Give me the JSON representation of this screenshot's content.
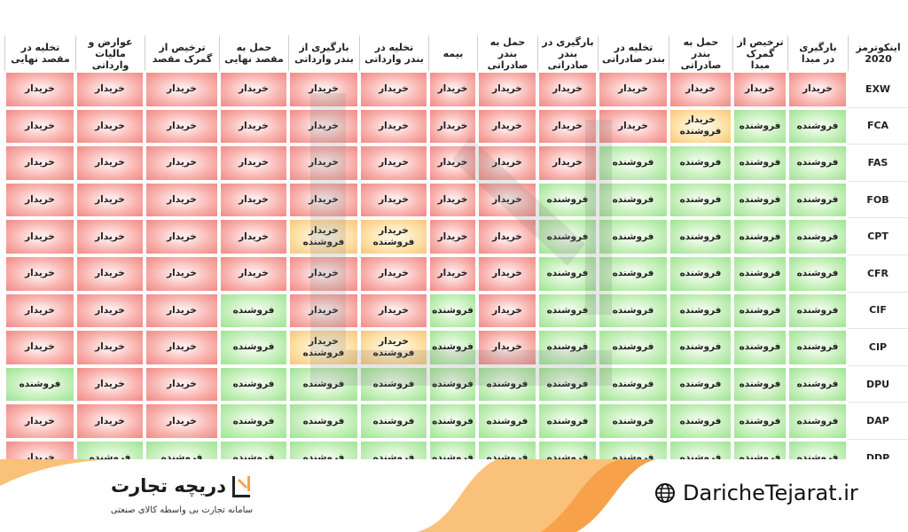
{
  "chart_data": {
    "type": "table",
    "corner_label": "اینکوترمز\n2020",
    "columns": [
      "بارگیری\nدر مبدا",
      "ترخیص از\nگمرک مبدا",
      "حمل به\nبندر صادراتی",
      "تخلیه در\nبندر صادراتی",
      "بارگیری در\nبندر صادراتی",
      "حمل به\nبندر صادراتی",
      "بیمه",
      "تخلیه در\nبندر وارداتی",
      "بارگیری از\nبندر وارداتی",
      "حمل به\nمقصد نهایی",
      "ترخیص از\nگمرک مقصد",
      "عوارض و\nمالیات وارداتی",
      "تخلیه در\nمقصد نهایی"
    ],
    "rows": [
      {
        "term": "EXW",
        "cells": [
          "B",
          "B",
          "B",
          "B",
          "B",
          "B",
          "B",
          "B",
          "B",
          "B",
          "B",
          "B",
          "B"
        ]
      },
      {
        "term": "FCA",
        "cells": [
          "S",
          "S",
          "BS",
          "B",
          "B",
          "B",
          "B",
          "B",
          "B",
          "B",
          "B",
          "B",
          "B"
        ]
      },
      {
        "term": "FAS",
        "cells": [
          "S",
          "S",
          "S",
          "S",
          "B",
          "B",
          "B",
          "B",
          "B",
          "B",
          "B",
          "B",
          "B"
        ]
      },
      {
        "term": "FOB",
        "cells": [
          "S",
          "S",
          "S",
          "S",
          "S",
          "B",
          "B",
          "B",
          "B",
          "B",
          "B",
          "B",
          "B"
        ]
      },
      {
        "term": "CPT",
        "cells": [
          "S",
          "S",
          "S",
          "S",
          "S",
          "B",
          "B",
          "BS",
          "BS",
          "B",
          "B",
          "B",
          "B"
        ]
      },
      {
        "term": "CFR",
        "cells": [
          "S",
          "S",
          "S",
          "S",
          "S",
          "B",
          "B",
          "B",
          "B",
          "B",
          "B",
          "B",
          "B"
        ]
      },
      {
        "term": "CIF",
        "cells": [
          "S",
          "S",
          "S",
          "S",
          "S",
          "B",
          "S",
          "B",
          "B",
          "S",
          "B",
          "B",
          "B"
        ]
      },
      {
        "term": "CIP",
        "cells": [
          "S",
          "S",
          "S",
          "S",
          "S",
          "B",
          "S",
          "BS",
          "BS",
          "S",
          "B",
          "B",
          "B"
        ]
      },
      {
        "term": "DPU",
        "cells": [
          "S",
          "S",
          "S",
          "S",
          "S",
          "S",
          "S",
          "S",
          "S",
          "S",
          "B",
          "B",
          "S"
        ]
      },
      {
        "term": "DAP",
        "cells": [
          "S",
          "S",
          "S",
          "S",
          "S",
          "S",
          "S",
          "S",
          "S",
          "S",
          "B",
          "B",
          "B"
        ]
      },
      {
        "term": "DDP",
        "cells": [
          "S",
          "S",
          "S",
          "S",
          "S",
          "S",
          "S",
          "S",
          "S",
          "S",
          "S",
          "S",
          "B"
        ]
      }
    ],
    "legend_values": {
      "B": "خریدار",
      "S": "فروشنده",
      "BS": "خریدار\nفروشنده"
    }
  },
  "colors": {
    "buyer": "#f08a86",
    "seller": "#9fe294",
    "shared": "#f6c57a",
    "footer_accent": "#f7a14a"
  },
  "footer": {
    "brand_name": "دریچه تجارت",
    "tagline": "سامانه تجارت بی واسطه کالای صنعتی",
    "website": "DaricheTejarat.ir",
    "icons": [
      "globe-icon",
      "logo-mark-icon"
    ]
  }
}
